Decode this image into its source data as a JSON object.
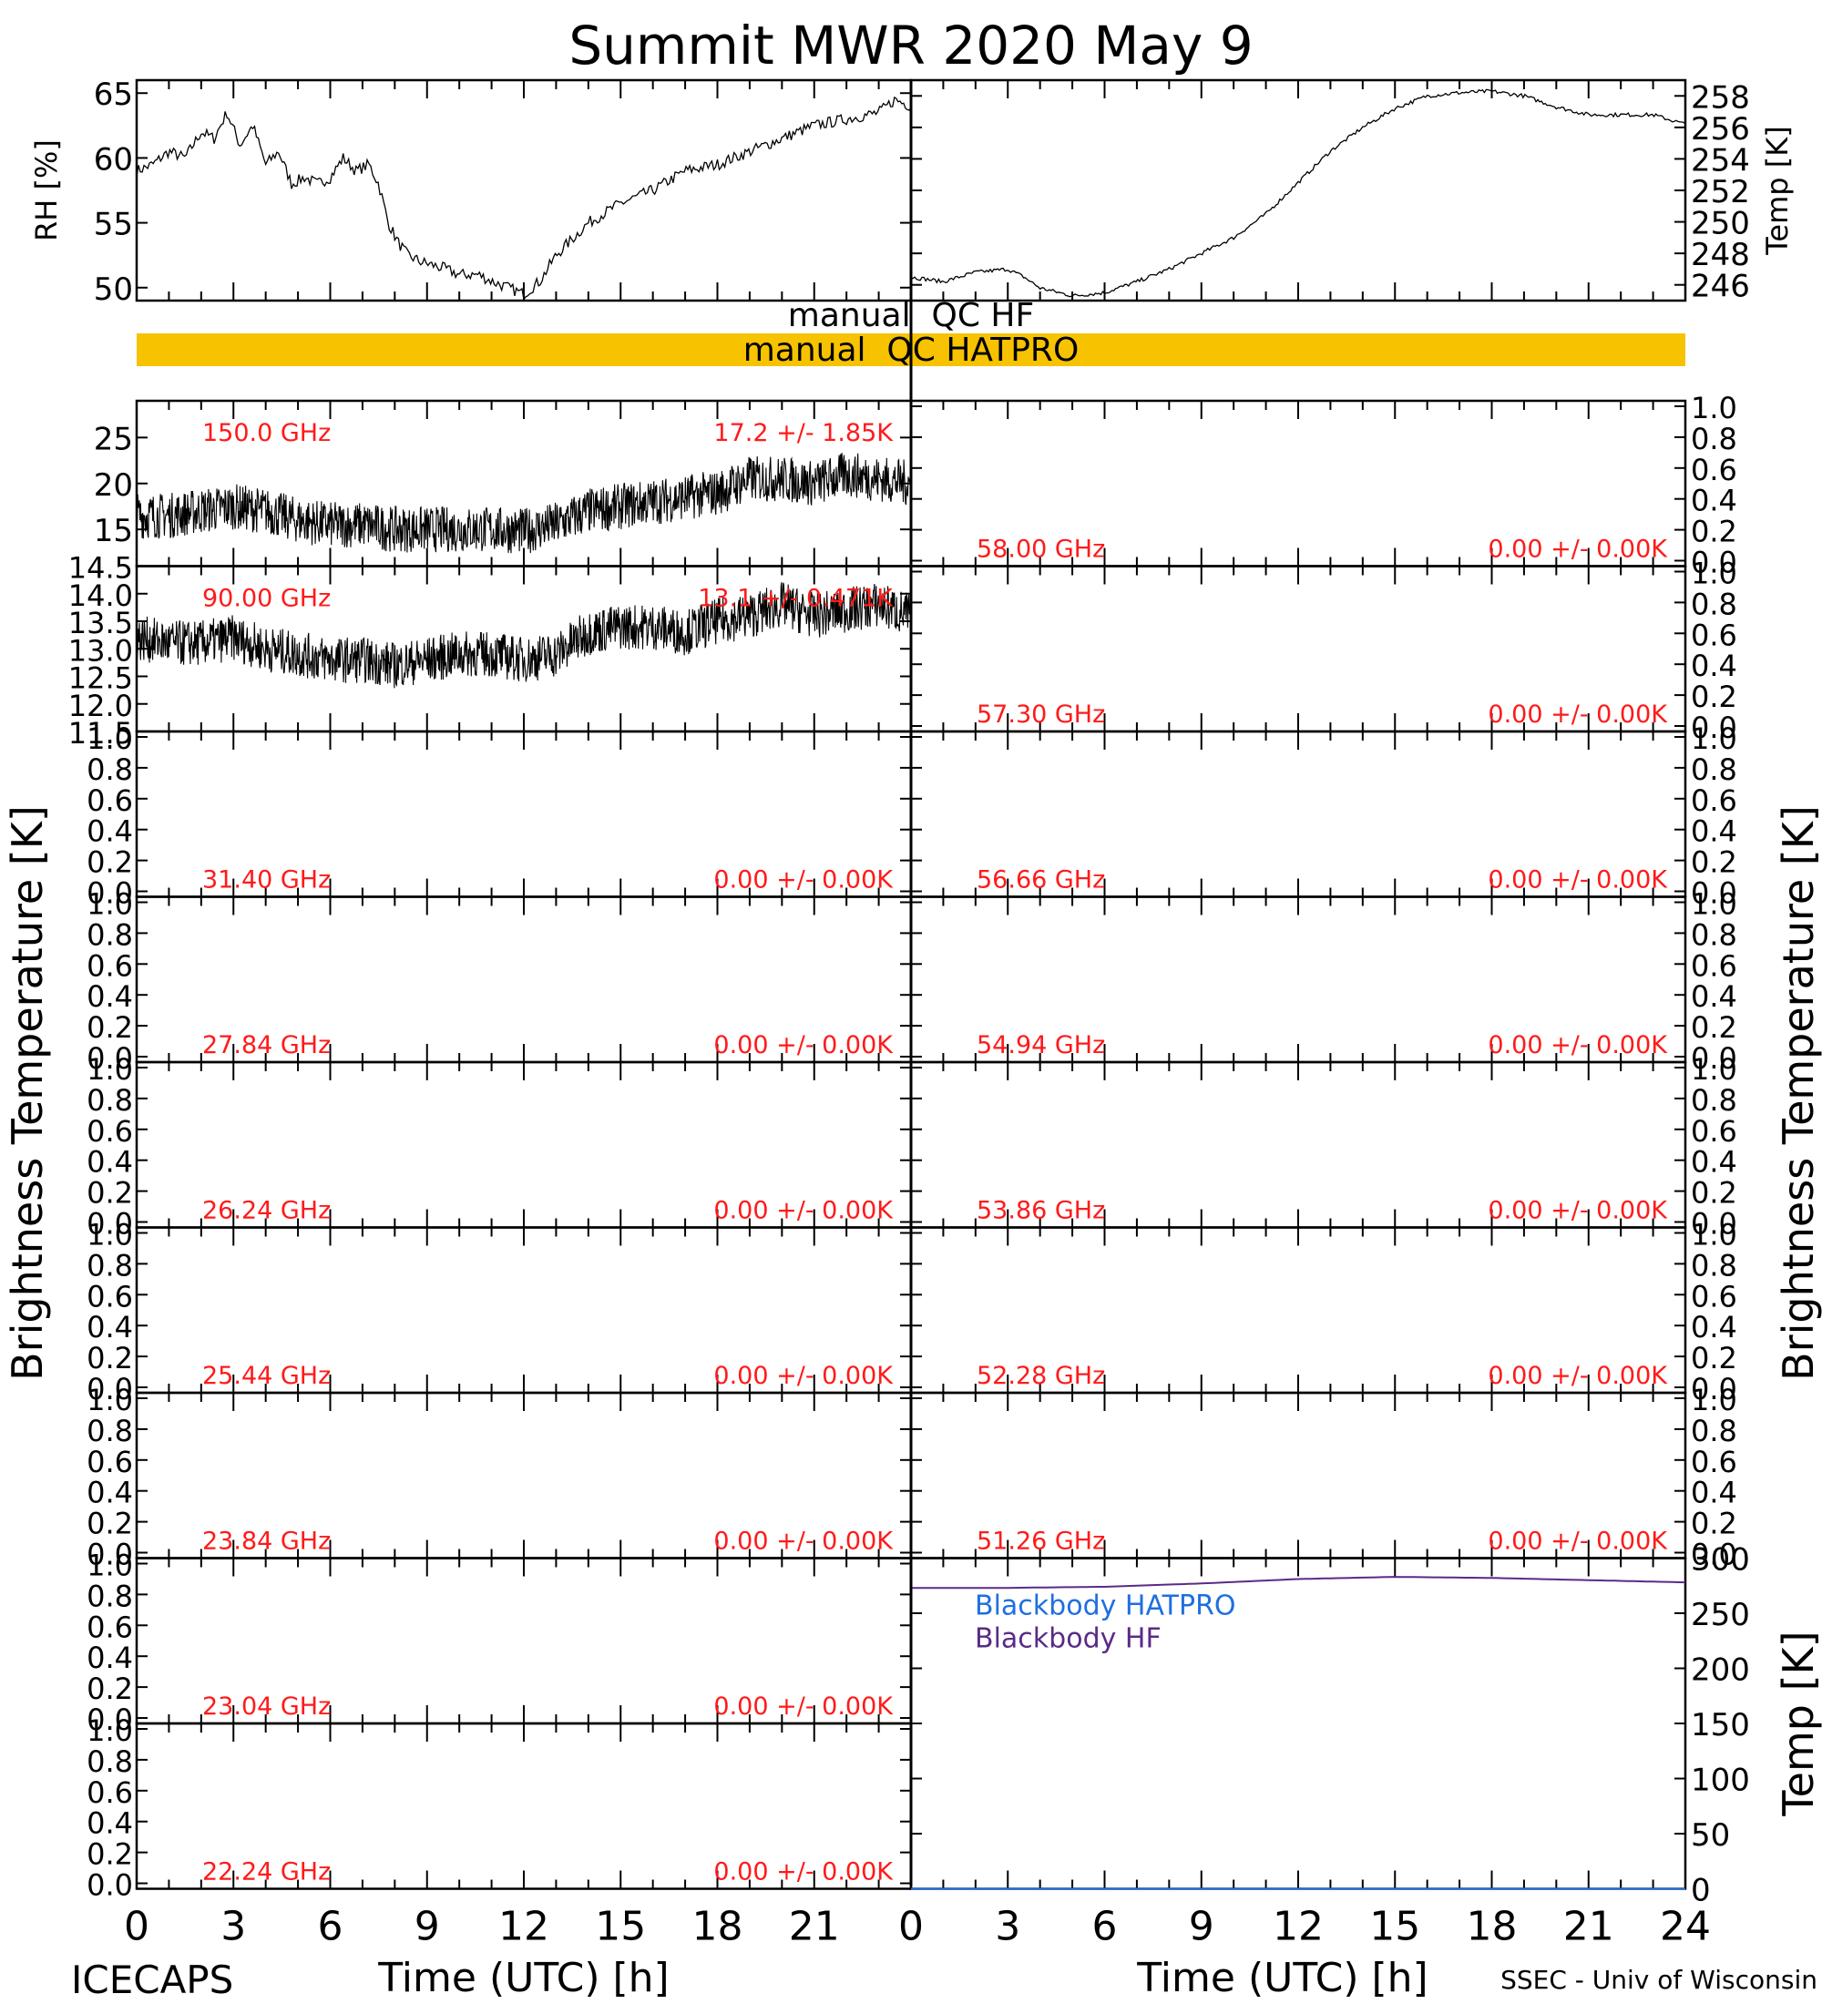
{
  "title": "Summit MWR 2020 May  9",
  "footer": {
    "left": "ICECAPS",
    "right": "SSEC - Univ of Wisconsin"
  },
  "axes": {
    "x_label_left": "Time (UTC) [h]",
    "x_label_right": "Time (UTC) [h]",
    "x_ticks_left": [
      "0",
      "3",
      "6",
      "9",
      "12",
      "15",
      "18",
      "21"
    ],
    "x_ticks_right": [
      "0",
      "3",
      "6",
      "9",
      "12",
      "15",
      "18",
      "21",
      "24"
    ],
    "y_label_left": "Brightness Temperature [K]",
    "y_label_right": "Brightness Temperature [K]"
  },
  "qc": {
    "hf_label": "manual  QC HF",
    "hatpro_label": "manual  QC HATPRO",
    "hatpro_color": "#f7c200"
  },
  "colors": {
    "label_red": "#ff1a1a",
    "blackbody_hatpro": "#1f6fe0",
    "blackbody_hf": "#5a2b86"
  },
  "chart_data": [
    {
      "type": "line",
      "panel": "rh",
      "ylabel": "RH [%]",
      "ylim": [
        49,
        66
      ],
      "yticks": [
        "65",
        "60",
        "55",
        "50"
      ],
      "x": [
        0,
        0.5,
        1,
        1.5,
        2,
        2.4,
        2.8,
        3.2,
        3.6,
        4.0,
        4.4,
        4.8,
        5.2,
        5.6,
        6.0,
        6.4,
        6.8,
        7.2,
        7.5,
        7.8,
        8.1,
        8.4,
        8.8,
        9.5,
        10,
        10.6,
        11,
        11.5,
        12,
        12.5,
        13,
        14,
        15,
        16,
        17,
        18,
        19,
        20,
        21,
        22,
        23,
        23.5,
        24
      ],
      "values": [
        59,
        59.5,
        60.5,
        60,
        62,
        61.5,
        63.5,
        61,
        62.5,
        59.5,
        60.5,
        58,
        58.5,
        58,
        58.5,
        60,
        59,
        59.5,
        58,
        55,
        53.5,
        52.5,
        52,
        51.5,
        51,
        51,
        50.5,
        50,
        49.5,
        50.5,
        52.5,
        55,
        56.5,
        57.5,
        59,
        59.5,
        60.5,
        61.5,
        62.5,
        63,
        63.5,
        64.5,
        64
      ]
    },
    {
      "type": "line",
      "panel": "temp",
      "ylabel": "Temp [K]",
      "ylim": [
        245,
        259
      ],
      "yticks": [
        "258",
        "256",
        "254",
        "252",
        "250",
        "248",
        "246"
      ],
      "x": [
        0,
        1,
        2,
        3,
        3.5,
        4,
        5,
        6,
        7,
        8,
        9,
        10,
        11,
        12,
        13,
        14,
        15,
        16,
        17,
        18,
        19,
        20,
        21,
        22,
        23,
        24
      ],
      "values": [
        246.5,
        246.2,
        246.8,
        247,
        246.5,
        245.8,
        245.3,
        245.5,
        246.2,
        247,
        248,
        249,
        250.5,
        252.5,
        254.5,
        256,
        257.2,
        258,
        258.2,
        258.3,
        258,
        257.3,
        256.8,
        256.8,
        256.8,
        256.2
      ]
    },
    {
      "type": "line",
      "panel": "tb-150",
      "freq_label": "150.0 GHz",
      "stat_label": "17.2 +/-  1.85K",
      "ylim": [
        11,
        29
      ],
      "yticks": [
        "25",
        "20",
        "15"
      ],
      "x": [
        0,
        1,
        2,
        3,
        4,
        5,
        6,
        7,
        8,
        9,
        10,
        11,
        12,
        13,
        14,
        15,
        16,
        17,
        18,
        19,
        20,
        21,
        22,
        23,
        24
      ],
      "values": [
        16.5,
        16.5,
        17,
        17.5,
        17,
        16,
        15.5,
        15.5,
        15,
        15,
        15,
        15,
        14.8,
        15.5,
        17,
        17.5,
        18,
        18.5,
        19,
        20.5,
        20.5,
        20,
        21,
        20.5,
        20
      ]
    },
    {
      "type": "line",
      "panel": "tb-90",
      "freq_label": "90.00 GHz",
      "stat_label": "13.1 +/-  0.471K",
      "ylim": [
        11.5,
        14.5
      ],
      "yticks": [
        "14.5",
        "14.0",
        "13.5",
        "13.0",
        "12.5",
        "12.0",
        "11.5"
      ],
      "x": [
        0,
        1,
        2,
        3,
        4,
        5,
        6,
        7,
        8,
        9,
        10,
        11,
        12,
        13,
        14,
        15,
        16,
        17,
        18,
        19,
        20,
        21,
        22,
        23,
        24
      ],
      "values": [
        13.2,
        13.1,
        13.1,
        13.2,
        13.0,
        12.9,
        12.8,
        12.8,
        12.7,
        12.8,
        12.9,
        12.9,
        12.8,
        12.9,
        13.3,
        13.4,
        13.4,
        13.3,
        13.5,
        13.6,
        13.8,
        13.6,
        13.7,
        13.8,
        13.6
      ]
    },
    {
      "type": "line",
      "panel": "blackbody",
      "ylabel": "Temp [K]",
      "ylim": [
        0,
        300
      ],
      "yticks": [
        "300",
        "250",
        "200",
        "150",
        "100",
        "50",
        "0"
      ],
      "x": [
        0,
        3,
        6,
        9,
        12,
        15,
        18,
        21,
        24
      ],
      "series": [
        {
          "name": "Blackbody HATPRO",
          "values": [
            0,
            0,
            0,
            0,
            0,
            0,
            0,
            0,
            0
          ]
        },
        {
          "name": "Blackbody HF",
          "values": [
            273,
            273,
            274,
            277,
            281,
            283,
            282,
            280,
            278
          ]
        }
      ]
    }
  ],
  "empty_panels": [
    {
      "freq_label": "31.40 GHz",
      "stat_label": "0.00 +/-  0.00K"
    },
    {
      "freq_label": "27.84 GHz",
      "stat_label": "0.00 +/-  0.00K"
    },
    {
      "freq_label": "26.24 GHz",
      "stat_label": "0.00 +/-  0.00K"
    },
    {
      "freq_label": "25.44 GHz",
      "stat_label": "0.00 +/-  0.00K"
    },
    {
      "freq_label": "23.84 GHz",
      "stat_label": "0.00 +/-  0.00K"
    },
    {
      "freq_label": "23.04 GHz",
      "stat_label": "0.00 +/-  0.00K"
    },
    {
      "freq_label": "22.24 GHz",
      "stat_label": "0.00 +/-  0.00K"
    },
    {
      "freq_label": "58.00 GHz",
      "stat_label": "0.00 +/-  0.00K"
    },
    {
      "freq_label": "57.30 GHz",
      "stat_label": "0.00 +/-  0.00K"
    },
    {
      "freq_label": "56.66 GHz",
      "stat_label": "0.00 +/-  0.00K"
    },
    {
      "freq_label": "54.94 GHz",
      "stat_label": "0.00 +/-  0.00K"
    },
    {
      "freq_label": "53.86 GHz",
      "stat_label": "0.00 +/-  0.00K"
    },
    {
      "freq_label": "52.28 GHz",
      "stat_label": "0.00 +/-  0.00K"
    },
    {
      "freq_label": "51.26 GHz",
      "stat_label": "0.00 +/-  0.00K"
    }
  ],
  "empty_yticks": [
    "1.0",
    "0.8",
    "0.6",
    "0.4",
    "0.2",
    "0.0"
  ]
}
